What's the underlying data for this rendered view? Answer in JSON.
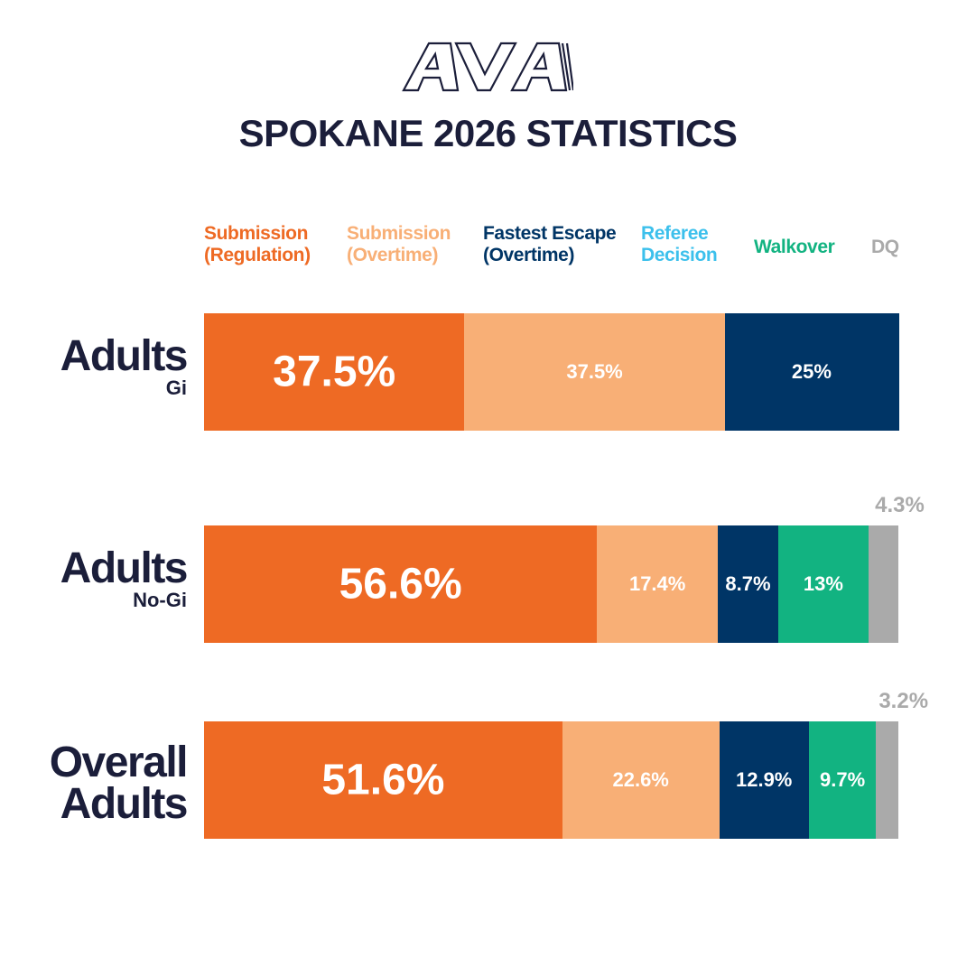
{
  "brand": {
    "logo_text": "AVA"
  },
  "title": "SPOKANE 2026 STATISTICS",
  "colors": {
    "sub_reg": "#ee6a24",
    "sub_ot": "#f8af76",
    "escape": "#003566",
    "referee": "#3cc0ec",
    "walkover": "#12b381",
    "dq": "#aaaaaa",
    "text_dark": "#1b1e3a"
  },
  "legend": [
    {
      "key": "sub_reg",
      "line1": "Submission",
      "line2": "(Regulation)"
    },
    {
      "key": "sub_ot",
      "line1": "Submission",
      "line2": "(Overtime)"
    },
    {
      "key": "escape",
      "line1": "Fastest Escape",
      "line2": "(Overtime)"
    },
    {
      "key": "referee",
      "line1": "Referee",
      "line2": "Decision"
    },
    {
      "key": "walkover",
      "line1": "Walkover",
      "line2": ""
    },
    {
      "key": "dq",
      "line1": "DQ",
      "line2": ""
    }
  ],
  "chart_data": {
    "type": "bar",
    "stacked": true,
    "orientation": "horizontal",
    "normalized_percent": true,
    "categories": [
      {
        "main": "Adults",
        "sub": "Gi"
      },
      {
        "main": "Adults",
        "sub": "No-Gi"
      },
      {
        "main": "Overall",
        "sub": "Adults"
      }
    ],
    "series": [
      {
        "name": "Submission (Regulation)",
        "key": "sub_reg",
        "values": [
          37.5,
          56.6,
          51.6
        ],
        "labels": [
          "37.5%",
          "56.6%",
          "51.6%"
        ]
      },
      {
        "name": "Submission (Overtime)",
        "key": "sub_ot",
        "values": [
          37.5,
          17.4,
          22.6
        ],
        "labels": [
          "37.5%",
          "17.4%",
          "22.6%"
        ]
      },
      {
        "name": "Fastest Escape (Overtime)",
        "key": "escape",
        "values": [
          25,
          8.7,
          12.9
        ],
        "labels": [
          "25%",
          "8.7%",
          "12.9%"
        ]
      },
      {
        "name": "Referee Decision",
        "key": "referee",
        "values": [
          0,
          0,
          0
        ],
        "labels": [
          "",
          "",
          ""
        ]
      },
      {
        "name": "Walkover",
        "key": "walkover",
        "values": [
          0,
          13,
          9.7
        ],
        "labels": [
          "",
          "13%",
          "9.7%"
        ]
      },
      {
        "name": "DQ",
        "key": "dq",
        "values": [
          0,
          4.3,
          3.2
        ],
        "labels": [
          "",
          "4.3%",
          "3.2%"
        ]
      }
    ]
  }
}
